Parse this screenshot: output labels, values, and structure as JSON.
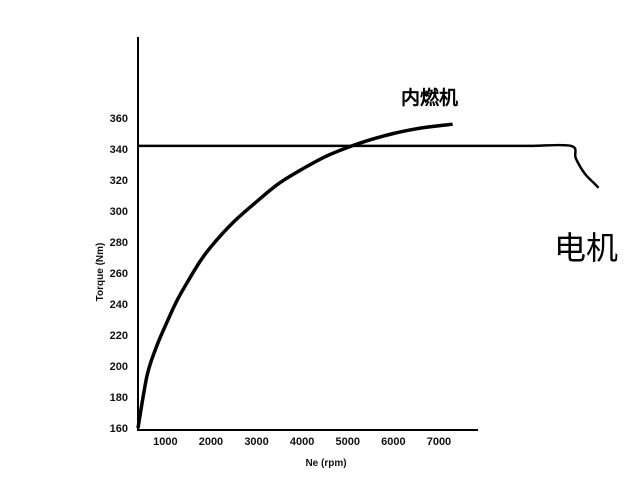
{
  "chart_data": {
    "type": "line",
    "title": "",
    "xlabel": "Ne (rpm)",
    "ylabel": "Torque (Nm)",
    "xlim": [
      400,
      10500
    ],
    "ylim": [
      160,
      380
    ],
    "xticks": [
      1000,
      2000,
      3000,
      4000,
      5000,
      6000,
      7000
    ],
    "yticks": [
      160,
      180,
      200,
      220,
      240,
      260,
      280,
      300,
      320,
      340,
      360
    ],
    "grid": false,
    "legend": "none",
    "series": [
      {
        "name": "内燃机",
        "color": "#000000",
        "x": [
          400,
          600,
          800,
          1000,
          1250,
          1500,
          1750,
          2000,
          2500,
          3000,
          3500,
          4000,
          4500,
          5000,
          5500,
          6000,
          6500,
          7000,
          7300
        ],
        "y": [
          160,
          194,
          212,
          226,
          242,
          255,
          267,
          277,
          293,
          306,
          318,
          327,
          335,
          341,
          346,
          350,
          353,
          355,
          356
        ]
      },
      {
        "name": "电机",
        "color": "#000000",
        "x": [
          400,
          1000,
          2000,
          3000,
          4000,
          5000,
          6000,
          7000,
          8000,
          9000,
          9900,
          10000,
          10200,
          10400,
          10500
        ],
        "y": [
          342,
          342,
          342,
          342,
          342,
          342,
          342,
          342,
          342,
          342,
          342,
          334,
          324,
          318,
          315
        ]
      }
    ]
  }
}
